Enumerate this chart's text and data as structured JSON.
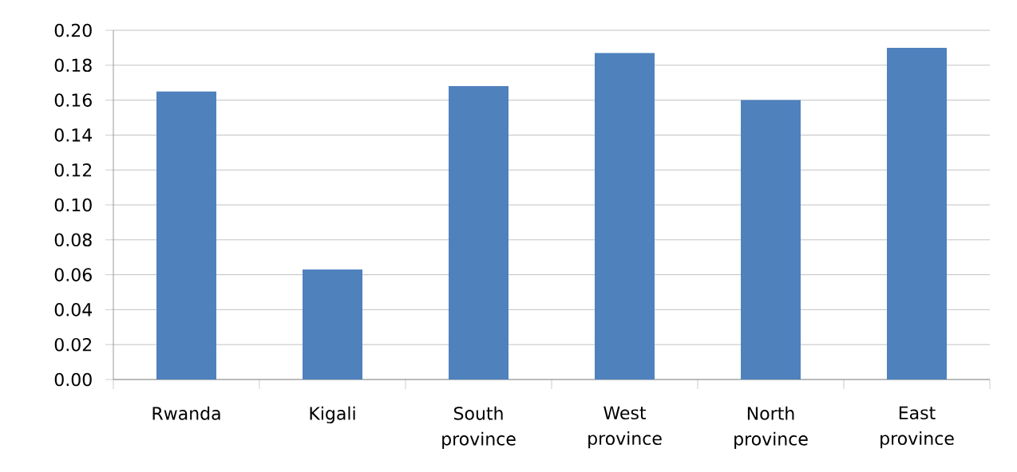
{
  "chart_data": {
    "type": "bar",
    "categories": [
      "Rwanda",
      "Kigali",
      "South province",
      "West province",
      "North province",
      "East province"
    ],
    "values": [
      0.165,
      0.063,
      0.168,
      0.187,
      0.16,
      0.19
    ],
    "color": "#4f81bd",
    "ylim": [
      0,
      0.2
    ],
    "yticks": [
      {
        "value": 0,
        "label": "0.00"
      },
      {
        "value": 0.02,
        "label": "0.02"
      },
      {
        "value": 0.04,
        "label": "0.04"
      },
      {
        "value": 0.06,
        "label": "0.06"
      },
      {
        "value": 0.08,
        "label": "0.08"
      },
      {
        "value": 0.1,
        "label": "0.10"
      },
      {
        "value": 0.12,
        "label": "0.12"
      },
      {
        "value": 0.14,
        "label": "0.14"
      },
      {
        "value": 0.16,
        "label": "0.16"
      },
      {
        "value": 0.18,
        "label": "0.18"
      },
      {
        "value": 0.2,
        "label": "0.20"
      }
    ],
    "grid": "y"
  }
}
